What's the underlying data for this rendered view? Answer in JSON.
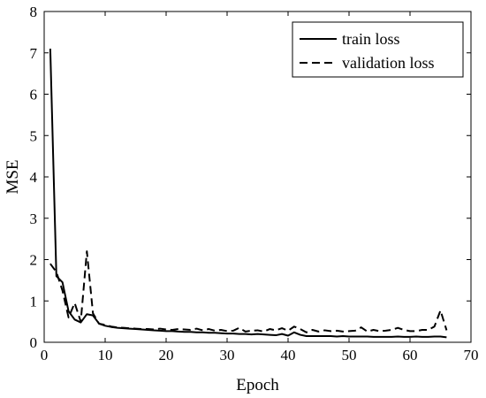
{
  "chart_data": {
    "type": "line",
    "title": "",
    "xlabel": "Epoch",
    "ylabel": "MSE",
    "xlim": [
      0,
      70
    ],
    "ylim": [
      0,
      8
    ],
    "xticks": [
      0,
      10,
      20,
      30,
      40,
      50,
      60,
      70
    ],
    "yticks": [
      0,
      1,
      2,
      3,
      4,
      5,
      6,
      7,
      8
    ],
    "grid": false,
    "legend_position": "top-right",
    "series": [
      {
        "name": "train loss",
        "style": "solid",
        "color": "#000000",
        "x": [
          1,
          2,
          3,
          4,
          5,
          6,
          7,
          8,
          9,
          10,
          11,
          12,
          13,
          14,
          15,
          16,
          17,
          18,
          19,
          20,
          21,
          22,
          23,
          24,
          25,
          26,
          27,
          28,
          29,
          30,
          31,
          32,
          33,
          34,
          35,
          36,
          37,
          38,
          39,
          40,
          41,
          42,
          43,
          44,
          45,
          46,
          47,
          48,
          49,
          50,
          51,
          52,
          53,
          54,
          55,
          56,
          57,
          58,
          59,
          60,
          61,
          62,
          63,
          64,
          65,
          66
        ],
        "y": [
          7.1,
          1.6,
          1.45,
          0.75,
          0.55,
          0.48,
          0.68,
          0.65,
          0.45,
          0.4,
          0.37,
          0.35,
          0.34,
          0.33,
          0.32,
          0.31,
          0.3,
          0.29,
          0.28,
          0.27,
          0.27,
          0.26,
          0.25,
          0.25,
          0.24,
          0.24,
          0.23,
          0.23,
          0.22,
          0.21,
          0.21,
          0.2,
          0.2,
          0.19,
          0.2,
          0.19,
          0.18,
          0.17,
          0.2,
          0.16,
          0.24,
          0.18,
          0.15,
          0.15,
          0.15,
          0.15,
          0.15,
          0.14,
          0.15,
          0.14,
          0.14,
          0.14,
          0.14,
          0.13,
          0.13,
          0.13,
          0.13,
          0.14,
          0.13,
          0.13,
          0.14,
          0.13,
          0.13,
          0.14,
          0.14,
          0.12
        ]
      },
      {
        "name": "validation loss",
        "style": "dashed",
        "color": "#000000",
        "x": [
          1,
          2,
          3,
          4,
          5,
          6,
          7,
          8,
          9,
          10,
          11,
          12,
          13,
          14,
          15,
          16,
          17,
          18,
          19,
          20,
          21,
          22,
          23,
          24,
          25,
          26,
          27,
          28,
          29,
          30,
          31,
          32,
          33,
          34,
          35,
          36,
          37,
          38,
          39,
          40,
          41,
          42,
          43,
          44,
          45,
          46,
          47,
          48,
          49,
          50,
          51,
          52,
          53,
          54,
          55,
          56,
          57,
          58,
          59,
          60,
          61,
          62,
          63,
          64,
          65,
          66
        ],
        "y": [
          1.9,
          1.7,
          1.25,
          0.6,
          0.95,
          0.5,
          2.2,
          0.7,
          0.45,
          0.42,
          0.38,
          0.36,
          0.35,
          0.34,
          0.33,
          0.32,
          0.32,
          0.31,
          0.33,
          0.31,
          0.3,
          0.32,
          0.31,
          0.3,
          0.33,
          0.29,
          0.32,
          0.28,
          0.3,
          0.27,
          0.28,
          0.35,
          0.26,
          0.28,
          0.29,
          0.26,
          0.32,
          0.29,
          0.34,
          0.28,
          0.38,
          0.32,
          0.24,
          0.3,
          0.26,
          0.29,
          0.27,
          0.28,
          0.26,
          0.27,
          0.28,
          0.36,
          0.26,
          0.3,
          0.27,
          0.28,
          0.3,
          0.35,
          0.3,
          0.27,
          0.27,
          0.3,
          0.3,
          0.38,
          0.77,
          0.29
        ]
      }
    ]
  }
}
